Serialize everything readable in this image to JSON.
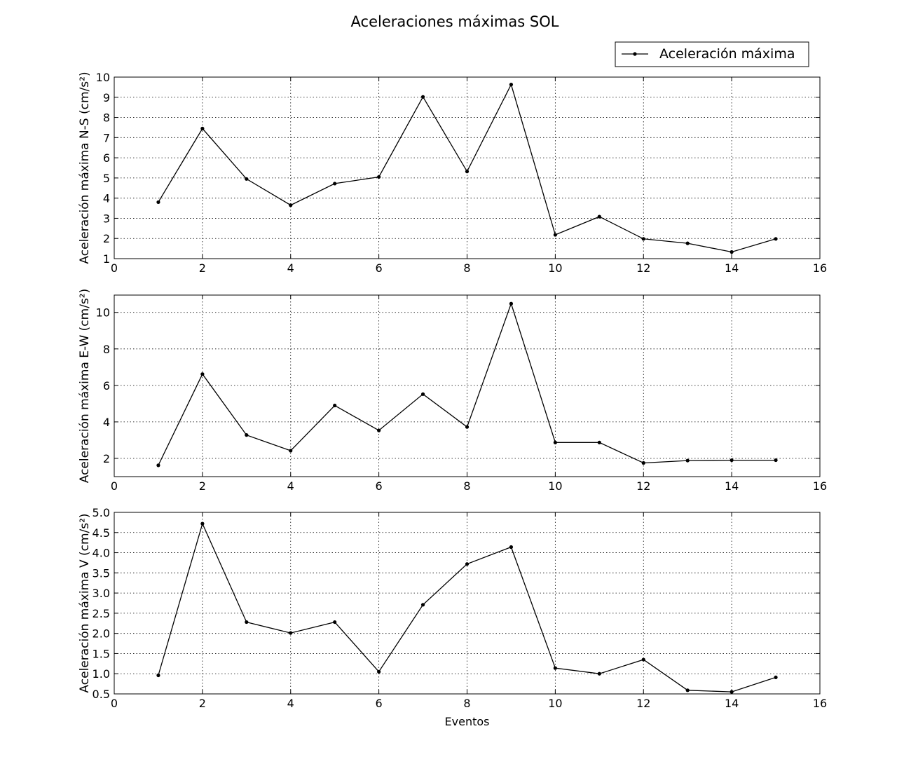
{
  "title": "Aceleraciones máximas SOL",
  "legend": {
    "label": "Aceleración máxima",
    "placement": "top-right"
  },
  "colors": {
    "line": "#000000",
    "grid": "#000000",
    "background": "#ffffff"
  },
  "chart_data": [
    {
      "type": "line",
      "ylabel": "Aceleración máxima N-S (cm/s²)",
      "xlabel": "",
      "xlim": [
        0,
        16
      ],
      "ylim": [
        1,
        10
      ],
      "grid": true,
      "xticks": [
        0,
        2,
        4,
        6,
        8,
        10,
        12,
        14,
        16
      ],
      "yticks": [
        1,
        2,
        3,
        4,
        5,
        6,
        7,
        8,
        9,
        10
      ],
      "ytick_labels": [
        "1",
        "2",
        "3",
        "4",
        "5",
        "6",
        "7",
        "8",
        "9",
        "10"
      ],
      "x": [
        1,
        2,
        3,
        4,
        5,
        6,
        7,
        8,
        9,
        10,
        11,
        12,
        13,
        14,
        15
      ],
      "series": [
        {
          "name": "Aceleración máxima",
          "values": [
            3.8,
            7.45,
            4.95,
            3.65,
            4.72,
            5.05,
            9.02,
            5.32,
            9.63,
            2.18,
            3.08,
            1.98,
            1.76,
            1.33,
            1.98
          ]
        }
      ]
    },
    {
      "type": "line",
      "ylabel": "Aceleración máxima E-W (cm/s²)",
      "xlabel": "",
      "xlim": [
        0,
        16
      ],
      "ylim": [
        1,
        10.95
      ],
      "grid": true,
      "xticks": [
        0,
        2,
        4,
        6,
        8,
        10,
        12,
        14,
        16
      ],
      "yticks": [
        2,
        4,
        6,
        8,
        10
      ],
      "ytick_labels": [
        "2",
        "4",
        "6",
        "8",
        "10"
      ],
      "x": [
        1,
        2,
        3,
        4,
        5,
        6,
        7,
        8,
        9,
        10,
        11,
        12,
        13,
        14,
        15
      ],
      "series": [
        {
          "name": "Aceleración máxima",
          "values": [
            1.62,
            6.62,
            3.28,
            2.42,
            4.9,
            3.53,
            5.52,
            3.72,
            10.48,
            2.87,
            2.87,
            1.75,
            1.88,
            1.9,
            1.9
          ]
        }
      ]
    },
    {
      "type": "line",
      "ylabel": "Aceleración máxima V (cm/s²)",
      "xlabel": "Eventos",
      "xlim": [
        0,
        16
      ],
      "ylim": [
        0.5,
        5.0
      ],
      "grid": true,
      "xticks": [
        0,
        2,
        4,
        6,
        8,
        10,
        12,
        14,
        16
      ],
      "yticks": [
        0.5,
        1.0,
        1.5,
        2.0,
        2.5,
        3.0,
        3.5,
        4.0,
        4.5,
        5.0
      ],
      "ytick_labels": [
        "0.5",
        "1.0",
        "1.5",
        "2.0",
        "2.5",
        "3.0",
        "3.5",
        "4.0",
        "4.5",
        "5.0"
      ],
      "x": [
        1,
        2,
        3,
        4,
        5,
        6,
        7,
        8,
        9,
        10,
        11,
        12,
        13,
        14,
        15
      ],
      "series": [
        {
          "name": "Aceleración máxima",
          "values": [
            0.96,
            4.72,
            2.28,
            2.01,
            2.28,
            1.05,
            2.71,
            3.72,
            4.14,
            1.14,
            1.0,
            1.35,
            0.59,
            0.55,
            0.91
          ]
        }
      ]
    }
  ]
}
